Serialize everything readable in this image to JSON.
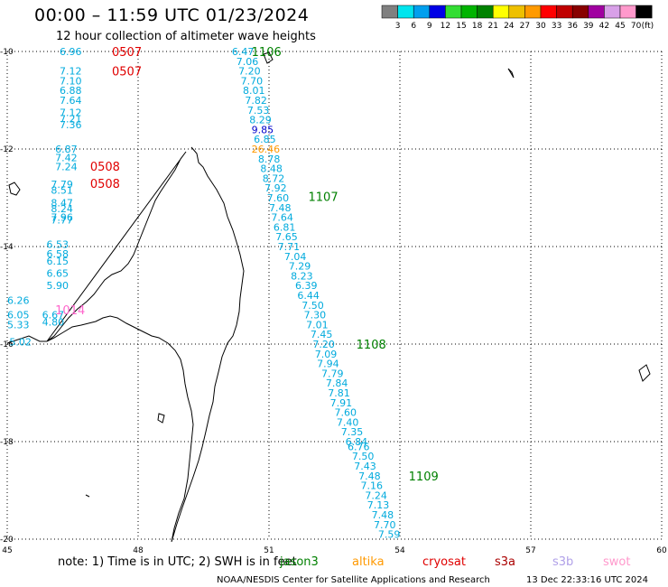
{
  "title": "00:00 – 11:59 UTC 01/23/2024",
  "subtitle": "12 hour collection of altimeter wave heights",
  "colorbar": {
    "labels": [
      "3",
      "6",
      "9",
      "12",
      "15",
      "18",
      "21",
      "24",
      "27",
      "30",
      "33",
      "36",
      "39",
      "42",
      "45",
      "70"
    ],
    "unit": "(ft)",
    "colors": [
      "#808080",
      "#00e5ee",
      "#009fee",
      "#0000e6",
      "#33dd33",
      "#00b400",
      "#008200",
      "#ffff00",
      "#eec000",
      "#ff9a00",
      "#ff0000",
      "#c00000",
      "#880000",
      "#a000a0",
      "#d8a0e8",
      "#ff99cc",
      "#000000"
    ]
  },
  "axes": {
    "lon_ticks": [
      "45",
      "48",
      "51",
      "54",
      "57",
      "60"
    ],
    "lat_ticks": [
      "-10",
      "-12",
      "-14",
      "-16",
      "-18",
      "-20"
    ]
  },
  "passes": [
    {
      "time": "0507",
      "color": "#e00000",
      "lat": -10.0,
      "lon": 47.4
    },
    {
      "time": "0507",
      "color": "#e00000",
      "lat": -10.4,
      "lon": 47.4
    },
    {
      "time": "0508",
      "color": "#e00000",
      "lat": -12.35,
      "lon": 46.9
    },
    {
      "time": "0508",
      "color": "#e00000",
      "lat": -12.7,
      "lon": 46.9
    },
    {
      "time": "1014",
      "color": "#ff66cc",
      "lat": -15.3,
      "lon": 46.1
    },
    {
      "time": "1106",
      "color": "#008000",
      "lat": -10.0,
      "lon": 50.6
    },
    {
      "time": "1107",
      "color": "#008000",
      "lat": -12.97,
      "lon": 51.9
    },
    {
      "time": "1108",
      "color": "#008000",
      "lat": -16.0,
      "lon": 53.0
    },
    {
      "time": "1109",
      "color": "#008000",
      "lat": -18.7,
      "lon": 54.2
    }
  ],
  "track_west": [
    {
      "v": "6.96",
      "lat": -10.0,
      "lon": 46.2
    },
    {
      "v": "7.12",
      "lat": -10.4,
      "lon": 46.2
    },
    {
      "v": "7.10",
      "lat": -10.6,
      "lon": 46.2
    },
    {
      "v": "6.88",
      "lat": -10.8,
      "lon": 46.2
    },
    {
      "v": "7.64",
      "lat": -11.0,
      "lon": 46.2
    },
    {
      "v": "7.12",
      "lat": -11.25,
      "lon": 46.2
    },
    {
      "v": "7.21",
      "lat": -11.38,
      "lon": 46.2
    },
    {
      "v": "7.36",
      "lat": -11.5,
      "lon": 46.2
    },
    {
      "v": "6.87",
      "lat": -12.0,
      "lon": 46.1
    },
    {
      "v": "7.42",
      "lat": -12.18,
      "lon": 46.1
    },
    {
      "v": "7.24",
      "lat": -12.36,
      "lon": 46.1
    },
    {
      "v": "7.79",
      "lat": -12.72,
      "lon": 46.0
    },
    {
      "v": "8.51",
      "lat": -12.84,
      "lon": 46.0
    },
    {
      "v": "8.47",
      "lat": -13.1,
      "lon": 46.0
    },
    {
      "v": "8.24",
      "lat": -13.22,
      "lon": 46.0
    },
    {
      "v": "7.96",
      "lat": -13.4,
      "lon": 46.0
    },
    {
      "v": "7.77",
      "lat": -13.45,
      "lon": 46.0
    },
    {
      "v": "6.53",
      "lat": -13.95,
      "lon": 45.9
    },
    {
      "v": "6.58",
      "lat": -14.15,
      "lon": 45.9
    },
    {
      "v": "6.15",
      "lat": -14.3,
      "lon": 45.9
    },
    {
      "v": "6.65",
      "lat": -14.55,
      "lon": 45.9
    },
    {
      "v": "5.90",
      "lat": -14.8,
      "lon": 45.9
    },
    {
      "v": "6.26",
      "lat": -15.1,
      "lon": 45.0
    },
    {
      "v": "6.05",
      "lat": -15.4,
      "lon": 45.0
    },
    {
      "v": "6.67",
      "lat": -15.4,
      "lon": 45.8
    },
    {
      "v": "5.33",
      "lat": -15.6,
      "lon": 45.0
    },
    {
      "v": "4.80",
      "lat": -15.55,
      "lon": 45.8
    },
    {
      "v": "5.02",
      "lat": -15.95,
      "lon": 45.05
    }
  ],
  "track_east": [
    {
      "v": "6.47",
      "lat": -10.0,
      "lon": 50.15
    },
    {
      "v": "7.06",
      "lat": -10.2,
      "lon": 50.25
    },
    {
      "v": "7.20",
      "lat": -10.4,
      "lon": 50.3
    },
    {
      "v": "7.70",
      "lat": -10.6,
      "lon": 50.35
    },
    {
      "v": "8.01",
      "lat": -10.8,
      "lon": 50.4
    },
    {
      "v": "7.82",
      "lat": -11.0,
      "lon": 50.45
    },
    {
      "v": "7.53",
      "lat": -11.2,
      "lon": 50.5
    },
    {
      "v": "8.29",
      "lat": -11.4,
      "lon": 50.55
    },
    {
      "v": "9.85",
      "lat": -11.6,
      "lon": 50.6
    },
    {
      "v": "6.85",
      "lat": -11.8,
      "lon": 50.65
    },
    {
      "v": "26.46",
      "lat": -12.0,
      "lon": 50.6
    },
    {
      "v": "8.78",
      "lat": -12.2,
      "lon": 50.75
    },
    {
      "v": "8.48",
      "lat": -12.4,
      "lon": 50.8
    },
    {
      "v": "8.72",
      "lat": -12.6,
      "lon": 50.85
    },
    {
      "v": "7.92",
      "lat": -12.8,
      "lon": 50.9
    },
    {
      "v": "7.60",
      "lat": -13.0,
      "lon": 50.95
    },
    {
      "v": "7.48",
      "lat": -13.2,
      "lon": 51.0
    },
    {
      "v": "7.64",
      "lat": -13.4,
      "lon": 51.05
    },
    {
      "v": "6.81",
      "lat": -13.6,
      "lon": 51.1
    },
    {
      "v": "7.65",
      "lat": -13.8,
      "lon": 51.15
    },
    {
      "v": "7.71",
      "lat": -14.0,
      "lon": 51.2
    },
    {
      "v": "7.04",
      "lat": -14.2,
      "lon": 51.35
    },
    {
      "v": "7.29",
      "lat": -14.4,
      "lon": 51.45
    },
    {
      "v": "8.23",
      "lat": -14.6,
      "lon": 51.5
    },
    {
      "v": "6.39",
      "lat": -14.8,
      "lon": 51.6
    },
    {
      "v": "6.44",
      "lat": -15.0,
      "lon": 51.65
    },
    {
      "v": "7.50",
      "lat": -15.2,
      "lon": 51.75
    },
    {
      "v": "7.30",
      "lat": -15.4,
      "lon": 51.8
    },
    {
      "v": "7.01",
      "lat": -15.6,
      "lon": 51.85
    },
    {
      "v": "7.45",
      "lat": -15.8,
      "lon": 51.95
    },
    {
      "v": "7.20",
      "lat": -16.0,
      "lon": 52.0
    },
    {
      "v": "7.09",
      "lat": -16.2,
      "lon": 52.05
    },
    {
      "v": "7.94",
      "lat": -16.4,
      "lon": 52.1
    },
    {
      "v": "7.79",
      "lat": -16.6,
      "lon": 52.2
    },
    {
      "v": "7.84",
      "lat": -16.8,
      "lon": 52.3
    },
    {
      "v": "7.81",
      "lat": -17.0,
      "lon": 52.35
    },
    {
      "v": "7.91",
      "lat": -17.2,
      "lon": 52.4
    },
    {
      "v": "7.60",
      "lat": -17.4,
      "lon": 52.5
    },
    {
      "v": "7.40",
      "lat": -17.6,
      "lon": 52.55
    },
    {
      "v": "7.35",
      "lat": -17.8,
      "lon": 52.65
    },
    {
      "v": "6.84",
      "lat": -18.0,
      "lon": 52.75
    },
    {
      "v": "6.76",
      "lat": -18.1,
      "lon": 52.8
    },
    {
      "v": "7.50",
      "lat": -18.3,
      "lon": 52.9
    },
    {
      "v": "7.43",
      "lat": -18.5,
      "lon": 52.95
    },
    {
      "v": "7.48",
      "lat": -18.7,
      "lon": 53.05
    },
    {
      "v": "7.16",
      "lat": -18.9,
      "lon": 53.1
    },
    {
      "v": "7.24",
      "lat": -19.1,
      "lon": 53.2
    },
    {
      "v": "7.13",
      "lat": -19.3,
      "lon": 53.25
    },
    {
      "v": "7.48",
      "lat": -19.5,
      "lon": 53.35
    },
    {
      "v": "7.70",
      "lat": -19.7,
      "lon": 53.4
    },
    {
      "v": "7.59",
      "lat": -19.9,
      "lon": 53.5
    }
  ],
  "legend": {
    "note": "note:  1) Time is in UTC; 2) SWH is in feet",
    "satellites": [
      {
        "name": "jason3",
        "color": "#008000"
      },
      {
        "name": "altika",
        "color": "#ff9900"
      },
      {
        "name": "cryosat",
        "color": "#e00000"
      },
      {
        "name": "s3a",
        "color": "#aa0000"
      },
      {
        "name": "s3b",
        "color": "#b0a0e8"
      },
      {
        "name": "swot",
        "color": "#ff99cc"
      }
    ]
  },
  "footer": {
    "credit": "NOAA/NESDIS Center for Satellite Applications and Research",
    "timestamp": "13 Dec 22:33:16 UTC 2024"
  }
}
